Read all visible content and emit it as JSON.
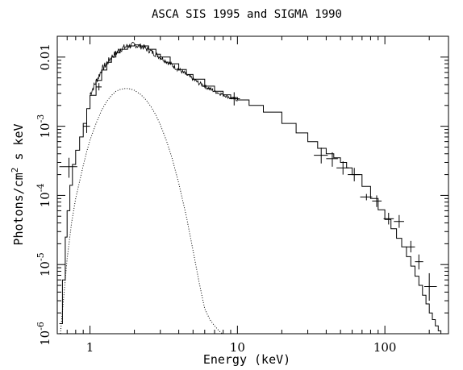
{
  "chart_data": {
    "type": "line",
    "title": "ASCA SIS 1995 and SIGMA 1990",
    "xlabel": "Energy (keV)",
    "ylabel_parts": [
      "Photons/cm",
      "2",
      " s keV"
    ],
    "x_scale": "log",
    "y_scale": "log",
    "xlim": [
      0.6,
      270
    ],
    "ylim": [
      1e-06,
      0.02
    ],
    "grid": false,
    "x_ticks": [
      {
        "value": 1,
        "label": "1"
      },
      {
        "value": 10,
        "label": "10"
      },
      {
        "value": 100,
        "label": "100"
      }
    ],
    "y_ticks": [
      {
        "value": 1e-06,
        "base": "10",
        "exp": "-6"
      },
      {
        "value": 1e-05,
        "base": "10",
        "exp": "-5"
      },
      {
        "value": 0.0001,
        "base": "10",
        "exp": "-4"
      },
      {
        "value": 0.001,
        "base": "10",
        "exp": "-3"
      },
      {
        "value": 0.01,
        "label": "0.01"
      }
    ],
    "series": [
      {
        "style": "step",
        "color": "#000000",
        "x": [
          0.62,
          0.65,
          0.68,
          0.7,
          0.73,
          0.76,
          0.8,
          0.85,
          0.9,
          0.95,
          1.0,
          1.1,
          1.2,
          1.3,
          1.4,
          1.5,
          1.6,
          1.8,
          2.0,
          2.2,
          2.5,
          2.8,
          3.0,
          3.5,
          4.0,
          4.5,
          5.0,
          6.0,
          7.0,
          8.0,
          9.0,
          10,
          12,
          15,
          20,
          25,
          30,
          35,
          40,
          45,
          50,
          55,
          60,
          70,
          80,
          90,
          100,
          110,
          120,
          130,
          140,
          150,
          160,
          170,
          180,
          190,
          200,
          210,
          220,
          230,
          240,
          250
        ],
        "y": [
          1.4e-06,
          6e-06,
          2.5e-05,
          6e-05,
          0.00014,
          0.00028,
          0.00045,
          0.0007,
          0.0011,
          0.0018,
          0.0028,
          0.0046,
          0.0065,
          0.0084,
          0.01,
          0.0115,
          0.013,
          0.0145,
          0.015,
          0.0145,
          0.013,
          0.011,
          0.01,
          0.008,
          0.0066,
          0.0056,
          0.0048,
          0.0038,
          0.0032,
          0.00285,
          0.0026,
          0.0024,
          0.002,
          0.0016,
          0.0011,
          0.0008,
          0.0006,
          0.00048,
          0.0004,
          0.00035,
          0.0003,
          0.00025,
          0.0002,
          0.000135,
          9e-05,
          6.2e-05,
          4.5e-05,
          3.3e-05,
          2.4e-05,
          1.8e-05,
          1.3e-05,
          9.5e-06,
          6.8e-06,
          5e-06,
          3.6e-06,
          2.7e-06,
          2e-06,
          1.6e-06,
          1.3e-06,
          1.1e-06,
          1e-06,
          1e-06
        ]
      },
      {
        "style": "dotted",
        "color": "#000000",
        "x": [
          0.63,
          0.66,
          0.7,
          0.75,
          0.8,
          0.85,
          0.9,
          0.95,
          1.0,
          1.1,
          1.2,
          1.3,
          1.4,
          1.5,
          1.6,
          1.7,
          1.8,
          1.9,
          2.0,
          2.2,
          2.4,
          2.6,
          2.8,
          3.0,
          3.3,
          3.6,
          4.0,
          4.5,
          5.0,
          5.5,
          6.0,
          6.5,
          7.0,
          7.5,
          7.9
        ],
        "y": [
          1e-06,
          3e-06,
          1.2e-05,
          4e-05,
          9e-05,
          0.00016,
          0.00027,
          0.00043,
          0.00063,
          0.0011,
          0.0017,
          0.0023,
          0.0028,
          0.0032,
          0.0034,
          0.0035,
          0.0035,
          0.00345,
          0.0033,
          0.0029,
          0.0024,
          0.0019,
          0.00145,
          0.00105,
          0.00062,
          0.00035,
          0.00015,
          5e-05,
          1.6e-05,
          5.5e-06,
          2.3e-06,
          1.6e-06,
          1.3e-06,
          1.1e-06,
          1e-06
        ]
      },
      {
        "style": "noisy",
        "color": "#000000",
        "x": [
          1.0,
          1.2,
          1.4,
          1.6,
          1.8,
          2.0,
          2.3,
          2.6,
          3.0,
          3.5,
          4.0,
          4.5,
          5.0,
          5.5,
          6.0,
          7.0,
          8.0,
          9.0,
          10
        ],
        "y": [
          0.0029,
          0.0065,
          0.01,
          0.013,
          0.0145,
          0.015,
          0.014,
          0.012,
          0.01,
          0.008,
          0.0066,
          0.0056,
          0.0048,
          0.0042,
          0.0038,
          0.0032,
          0.00285,
          0.0026,
          0.0024
        ]
      }
    ],
    "error_points": [
      {
        "x": 0.72,
        "y": 0.00026,
        "xerr": [
          0.62,
          0.82
        ],
        "yerr": [
          0.00018,
          0.00035
        ]
      },
      {
        "x": 0.95,
        "y": 0.001,
        "xerr": [
          0.9,
          1.0
        ],
        "yerr": [
          0.0008,
          0.0012
        ]
      },
      {
        "x": 1.15,
        "y": 0.0037,
        "xerr": [
          1.1,
          1.2
        ],
        "yerr": [
          0.0033,
          0.0042
        ]
      },
      {
        "x": 9.5,
        "y": 0.0025,
        "xerr": [
          8.8,
          10.4
        ],
        "yerr": [
          0.002,
          0.0031
        ]
      },
      {
        "x": 37,
        "y": 0.00038,
        "xerr": [
          33,
          41
        ],
        "yerr": [
          0.00029,
          0.00049
        ]
      },
      {
        "x": 44,
        "y": 0.00034,
        "xerr": [
          40,
          48
        ],
        "yerr": [
          0.00026,
          0.00042
        ]
      },
      {
        "x": 52,
        "y": 0.00025,
        "xerr": [
          47,
          57
        ],
        "yerr": [
          0.0002,
          0.00031
        ]
      },
      {
        "x": 62,
        "y": 0.0002,
        "xerr": [
          56,
          68
        ],
        "yerr": [
          0.00016,
          0.00025
        ]
      },
      {
        "x": 75,
        "y": 9.5e-05,
        "xerr": [
          68,
          82
        ],
        "yerr": [
          8.5e-05,
          0.000105
        ]
      },
      {
        "x": 88,
        "y": 8.3e-05,
        "xerr": [
          82,
          95
        ],
        "yerr": [
          6.8e-05,
          0.0001
        ]
      },
      {
        "x": 106,
        "y": 4.6e-05,
        "xerr": [
          98,
          115
        ],
        "yerr": [
          3.8e-05,
          5.6e-05
        ]
      },
      {
        "x": 125,
        "y": 4.2e-05,
        "xerr": [
          115,
          135
        ],
        "yerr": [
          3.4e-05,
          5.2e-05
        ]
      },
      {
        "x": 150,
        "y": 1.8e-05,
        "xerr": [
          140,
          160
        ],
        "yerr": [
          1.5e-05,
          2.2e-05
        ]
      },
      {
        "x": 170,
        "y": 1.1e-05,
        "xerr": [
          160,
          182
        ],
        "yerr": [
          8.5e-06,
          1.4e-05
        ]
      },
      {
        "x": 200,
        "y": 4.8e-06,
        "xerr": [
          185,
          225
        ],
        "yerr": [
          3e-06,
          7.5e-06
        ]
      }
    ]
  }
}
